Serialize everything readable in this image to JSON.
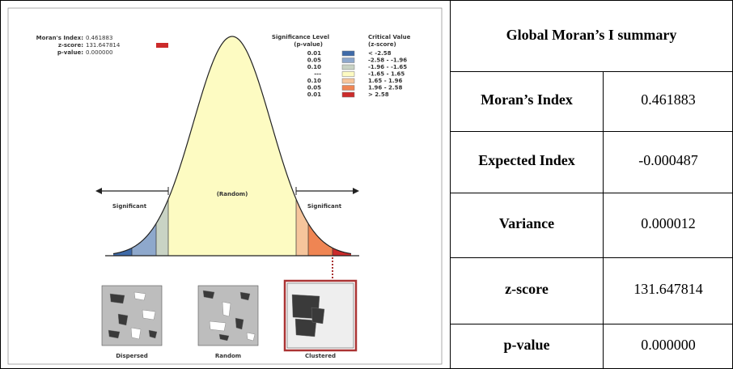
{
  "diagram": {
    "stats": [
      {
        "label": "Moran's Index:",
        "value": "0.461883"
      },
      {
        "label": "z-score:",
        "value": "131.647814"
      },
      {
        "label": "p-value:",
        "value": "0.000000"
      }
    ],
    "legend": {
      "title_left": "Significance Level",
      "subtitle_left": "(p-value)",
      "title_right": "Critical Value",
      "subtitle_right": "(z-score)",
      "rows": [
        {
          "p": "0.01",
          "z": "< -2.58",
          "color": "#3f6aa8"
        },
        {
          "p": "0.05",
          "z": "-2.58 - -1.96",
          "color": "#8ea8cc"
        },
        {
          "p": "0.10",
          "z": "-1.96 - -1.65",
          "color": "#c9d3c4"
        },
        {
          "p": "---",
          "z": "-1.65 - 1.65",
          "color": "#fdfbc2"
        },
        {
          "p": "0.10",
          "z": "1.65 - 1.96",
          "color": "#f6c59c"
        },
        {
          "p": "0.05",
          "z": "1.96 - 2.58",
          "color": "#ef8553"
        },
        {
          "p": "0.01",
          "z": "> 2.58",
          "color": "#cc2b2b"
        }
      ]
    },
    "regions": [
      "Significant",
      "(Random)",
      "Significant"
    ],
    "patterns": [
      "Dispersed",
      "Random",
      "Clustered"
    ]
  },
  "table": {
    "title": "Global Moran’s I summary",
    "rows": [
      [
        "Moran’s Index",
        "0.461883"
      ],
      [
        "Expected Index",
        "-0.000487"
      ],
      [
        "Variance",
        "0.000012"
      ],
      [
        "z-score",
        "131.647814"
      ],
      [
        "p-value",
        "0.000000"
      ]
    ]
  }
}
